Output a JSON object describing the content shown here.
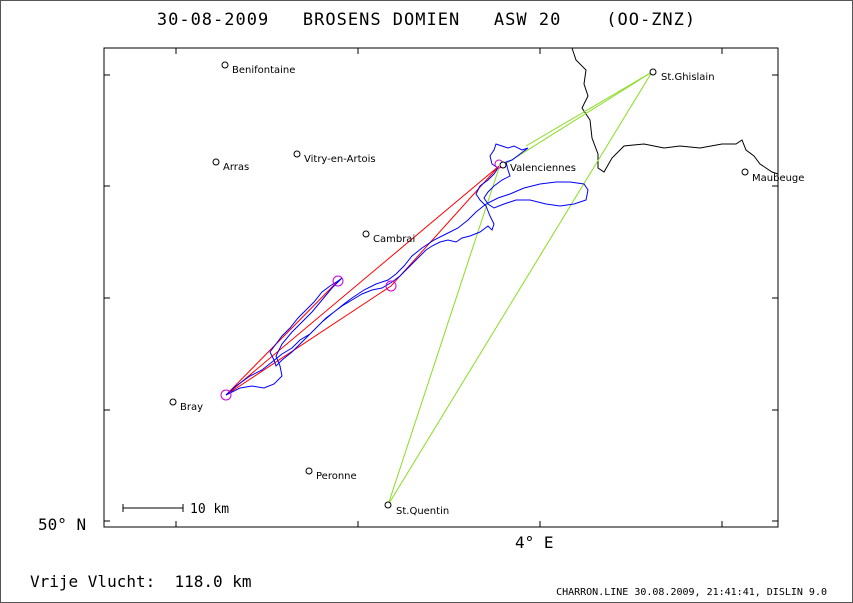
{
  "title": "30-08-2009   BROSENS DOMIEN   ASW 20    (OO-ZNZ)",
  "axes": {
    "latitude_label": "50° N",
    "longitude_label": "4° E"
  },
  "scale_bar": {
    "label": "10 km"
  },
  "distance_text": "Vrije Vlucht:  118.0 km",
  "footer_credit": "CHARRON.LINE 30.08.2009, 21:41:41, DISLIN 9.0",
  "towns": [
    {
      "name": "Benifontaine"
    },
    {
      "name": "Arras"
    },
    {
      "name": "Vitry-en-Artois"
    },
    {
      "name": "Cambrai"
    },
    {
      "name": "Valenciennes"
    },
    {
      "name": "St.Ghislain"
    },
    {
      "name": "Maubeuge"
    },
    {
      "name": "Bray"
    },
    {
      "name": "Peronne"
    },
    {
      "name": "St.Quentin"
    }
  ],
  "colors": {
    "flight_track": "#0000ff",
    "task_route": "#ff0000",
    "triangle_route": "#88dd22",
    "turnpoint_marker": "#cc00cc",
    "border": "#000000"
  }
}
